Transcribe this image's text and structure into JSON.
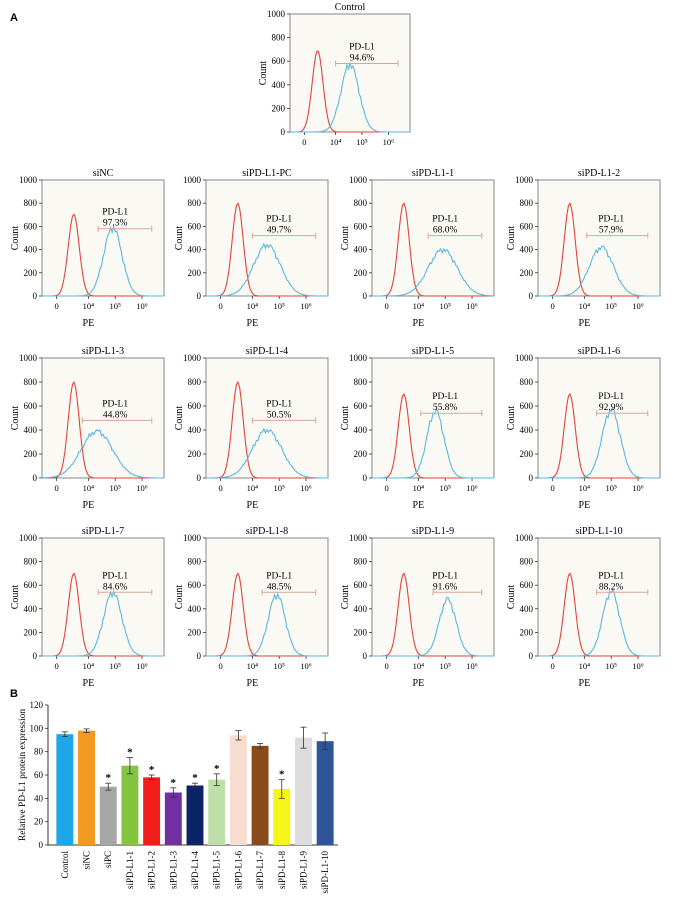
{
  "panel_a_label": "A",
  "panel_b_label": "B",
  "colors": {
    "isotype_curve": "#e0443a",
    "pdl1_curve": "#5ab8dc",
    "gate_line": "#d9a59a",
    "plot_bg": "#fbf9f4",
    "frame": "#888888"
  },
  "chart_data": [
    {
      "type": "line",
      "title": "Control",
      "ylabel": "Count",
      "xlabel": "",
      "y_ticks": [
        "0",
        "200",
        "400",
        "600",
        "800",
        "1000"
      ],
      "x_ticks": [
        "0",
        "10⁴",
        "10⁵",
        "10⁶"
      ],
      "gate_label": "PD-L1",
      "gate_value": "94.6%",
      "peak_red_count": 690,
      "peak_blue_count": 575
    },
    {
      "type": "line",
      "title": "siNC",
      "ylabel": "Count",
      "xlabel": "PE",
      "y_ticks": [
        "0",
        "200",
        "400",
        "600",
        "800",
        "1000"
      ],
      "x_ticks": [
        "0",
        "10⁴",
        "10⁵",
        "10⁶"
      ],
      "gate_label": "PD-L1",
      "gate_value": "97.3%",
      "peak_red_count": 705,
      "peak_blue_count": 590
    },
    {
      "type": "line",
      "title": "siPD-L1-PC",
      "ylabel": "Count",
      "xlabel": "PE",
      "y_ticks": [
        "0",
        "200",
        "400",
        "600",
        "800",
        "1000"
      ],
      "x_ticks": [
        "0",
        "10⁴",
        "10⁵",
        "10⁶"
      ],
      "gate_label": "PD-L1",
      "gate_value": "49.7%",
      "peak_red_count": 800,
      "peak_blue_count": 440
    },
    {
      "type": "line",
      "title": "siPD-L1-1",
      "ylabel": "Count",
      "xlabel": "PE",
      "y_ticks": [
        "0",
        "200",
        "400",
        "600",
        "800",
        "1000"
      ],
      "x_ticks": [
        "0",
        "10⁴",
        "10⁵",
        "10⁶"
      ],
      "gate_label": "PD-L1",
      "gate_value": "68.0%",
      "peak_red_count": 800,
      "peak_blue_count": 400
    },
    {
      "type": "line",
      "title": "siPD-L1-2",
      "ylabel": "Count",
      "xlabel": "PE",
      "y_ticks": [
        "0",
        "200",
        "400",
        "600",
        "800",
        "1000"
      ],
      "x_ticks": [
        "0",
        "10⁴",
        "10⁵",
        "10⁶"
      ],
      "gate_label": "PD-L1",
      "gate_value": "57.9%",
      "peak_red_count": 800,
      "peak_blue_count": 420
    },
    {
      "type": "line",
      "title": "siPD-L1-3",
      "ylabel": "Count",
      "xlabel": "PE",
      "y_ticks": [
        "0",
        "200",
        "400",
        "600",
        "800",
        "1000"
      ],
      "x_ticks": [
        "0",
        "10⁴",
        "10⁵",
        "10⁶"
      ],
      "gate_label": "PD-L1",
      "gate_value": "44.8%",
      "peak_red_count": 800,
      "peak_blue_count": 390
    },
    {
      "type": "line",
      "title": "siPD-L1-4",
      "ylabel": "Count",
      "xlabel": "PE",
      "y_ticks": [
        "0",
        "200",
        "400",
        "600",
        "800",
        "1000"
      ],
      "x_ticks": [
        "0",
        "10⁴",
        "10⁵",
        "10⁶"
      ],
      "gate_label": "PD-L1",
      "gate_value": "50.5%",
      "peak_red_count": 800,
      "peak_blue_count": 400
    },
    {
      "type": "line",
      "title": "siPD-L1-5",
      "ylabel": "Count",
      "xlabel": "PE",
      "y_ticks": [
        "0",
        "200",
        "400",
        "600",
        "800",
        "1000"
      ],
      "x_ticks": [
        "0",
        "10⁴",
        "10⁵",
        "10⁶"
      ],
      "gate_label": "PD-L1",
      "gate_value": "55.8%",
      "peak_red_count": 700,
      "peak_blue_count": 560
    },
    {
      "type": "line",
      "title": "siPD-L1-6",
      "ylabel": "Count",
      "xlabel": "PE",
      "y_ticks": [
        "0",
        "200",
        "400",
        "600",
        "800",
        "1000"
      ],
      "x_ticks": [
        "0",
        "10⁴",
        "10⁵",
        "10⁶"
      ],
      "gate_label": "PD-L1",
      "gate_value": "92.9%",
      "peak_red_count": 700,
      "peak_blue_count": 570
    },
    {
      "type": "line",
      "title": "siPD-L1-7",
      "ylabel": "Count",
      "xlabel": "PE",
      "y_ticks": [
        "0",
        "200",
        "400",
        "600",
        "800",
        "1000"
      ],
      "x_ticks": [
        "0",
        "10⁴",
        "10⁵",
        "10⁶"
      ],
      "gate_label": "PD-L1",
      "gate_value": "84.6%",
      "peak_red_count": 700,
      "peak_blue_count": 540
    },
    {
      "type": "line",
      "title": "siPD-L1-8",
      "ylabel": "Count",
      "xlabel": "PE",
      "y_ticks": [
        "0",
        "200",
        "400",
        "600",
        "800",
        "1000"
      ],
      "x_ticks": [
        "0",
        "10⁴",
        "10⁵",
        "10⁶"
      ],
      "gate_label": "PD-L1",
      "gate_value": "48.5%",
      "peak_red_count": 700,
      "peak_blue_count": 520
    },
    {
      "type": "line",
      "title": "siPD-L1-9",
      "ylabel": "Count",
      "xlabel": "PE",
      "y_ticks": [
        "0",
        "200",
        "400",
        "600",
        "800",
        "1000"
      ],
      "x_ticks": [
        "0",
        "10⁴",
        "10⁵",
        "10⁶"
      ],
      "gate_label": "PD-L1",
      "gate_value": "91.6%",
      "peak_red_count": 700,
      "peak_blue_count": 480
    },
    {
      "type": "line",
      "title": "siPD-L1-10",
      "ylabel": "Count",
      "xlabel": "PE",
      "y_ticks": [
        "0",
        "200",
        "400",
        "600",
        "800",
        "1000"
      ],
      "x_ticks": [
        "0",
        "10⁴",
        "10⁵",
        "10⁶"
      ],
      "gate_label": "PD-L1",
      "gate_value": "88.2%",
      "peak_red_count": 700,
      "peak_blue_count": 550
    },
    {
      "type": "bar",
      "title": "",
      "xlabel": "",
      "ylabel": "Relative PD-L1 protein expression",
      "ylim": [
        0,
        120
      ],
      "y_ticks": [
        "0",
        "20",
        "40",
        "60",
        "80",
        "100",
        "120"
      ],
      "categories": [
        "Control",
        "siNC",
        "siPC",
        "siPD-L1-1",
        "siPD-L1-2",
        "siPD-L1-3",
        "siPD-L1-4",
        "siPD-L1-5",
        "siPD-L1-6",
        "siPD-L1-7",
        "siPD-L1-8",
        "siPD-L1-9",
        "siPD-L1-10"
      ],
      "values": [
        95,
        98,
        50,
        68,
        58,
        45,
        51,
        56,
        94,
        85,
        48,
        92,
        89
      ],
      "errors": [
        2,
        1.5,
        3,
        7,
        2,
        4,
        2,
        5,
        4,
        2,
        8,
        9,
        7
      ],
      "significance": [
        "",
        "",
        "*",
        "*",
        "*",
        "*",
        "*",
        "*",
        "",
        "",
        "*",
        "",
        ""
      ],
      "bar_colors": [
        "#1ea7e8",
        "#f29a1f",
        "#a6a6a6",
        "#84c441",
        "#f21d1d",
        "#7030a0",
        "#0a2466",
        "#bedfa7",
        "#f8dccf",
        "#8a4a1a",
        "#f5f51a",
        "#dcdcdc",
        "#2d5597"
      ]
    }
  ]
}
